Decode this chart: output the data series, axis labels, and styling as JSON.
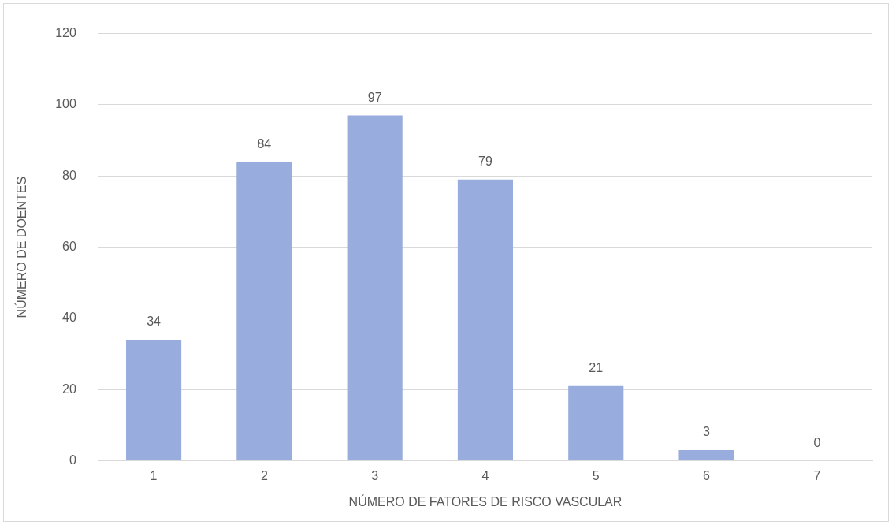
{
  "chart_data": {
    "type": "bar",
    "xlabel": "NÚMERO DE FATORES DE RISCO VASCULAR",
    "ylabel": "NÚMERO DE DOENTES",
    "categories": [
      "1",
      "2",
      "3",
      "4",
      "5",
      "6",
      "7"
    ],
    "values": [
      34,
      84,
      97,
      79,
      21,
      3,
      0
    ],
    "color": "#98acdd",
    "ylim": [
      0,
      120
    ],
    "yticks": [
      0,
      20,
      40,
      60,
      80,
      100,
      120
    ],
    "grid": "y",
    "data_labels": true,
    "legend": false
  }
}
